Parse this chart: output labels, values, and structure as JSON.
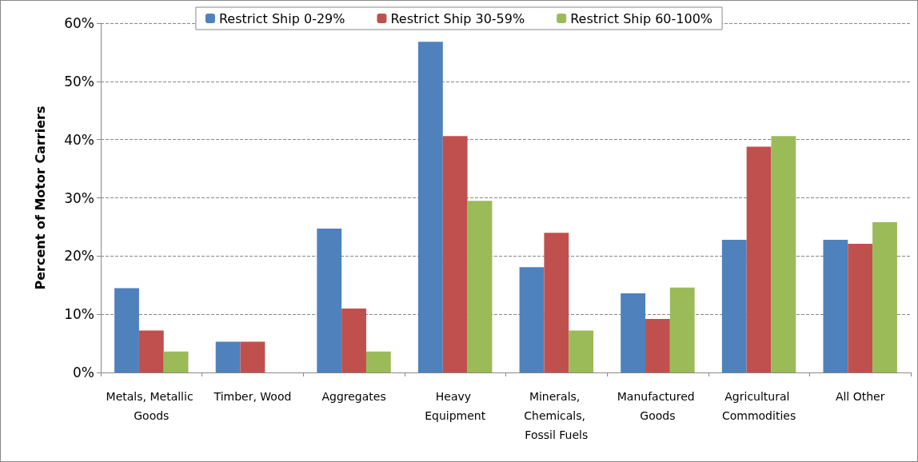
{
  "chart_data": {
    "type": "bar",
    "ylabel": "Percent of Motor Carriers",
    "categories": [
      "Metals, Metallic Goods",
      "Timber, Wood",
      "Aggregates",
      "Heavy Equipment",
      "Minerals, Chemicals, Fossil Fuels",
      "Manufactured Goods",
      "Agricultural Commodities",
      "All Other"
    ],
    "series": [
      {
        "name": "Restrict Ship 0-29%",
        "color": "#4f81bd",
        "values": [
          14.5,
          5.3,
          24.7,
          56.8,
          18.1,
          13.6,
          22.8,
          22.8
        ]
      },
      {
        "name": "Restrict Ship 30-59%",
        "color": "#c0504d",
        "values": [
          7.2,
          5.3,
          11.0,
          40.6,
          24.0,
          9.2,
          38.8,
          22.1
        ]
      },
      {
        "name": "Restrict Ship 60-100%",
        "color": "#9bbb59",
        "values": [
          3.6,
          null,
          3.6,
          29.5,
          7.2,
          14.6,
          40.6,
          25.8
        ]
      }
    ],
    "ylim": [
      0,
      60
    ],
    "yticks": [
      {
        "value": 0,
        "label": "0%"
      },
      {
        "value": 10,
        "label": "10%"
      },
      {
        "value": 20,
        "label": "20%"
      },
      {
        "value": 30,
        "label": "30%"
      },
      {
        "value": 40,
        "label": "40%"
      },
      {
        "value": 50,
        "label": "50%"
      },
      {
        "value": 60,
        "label": "60%"
      }
    ],
    "grid": "y",
    "legend": "top"
  }
}
